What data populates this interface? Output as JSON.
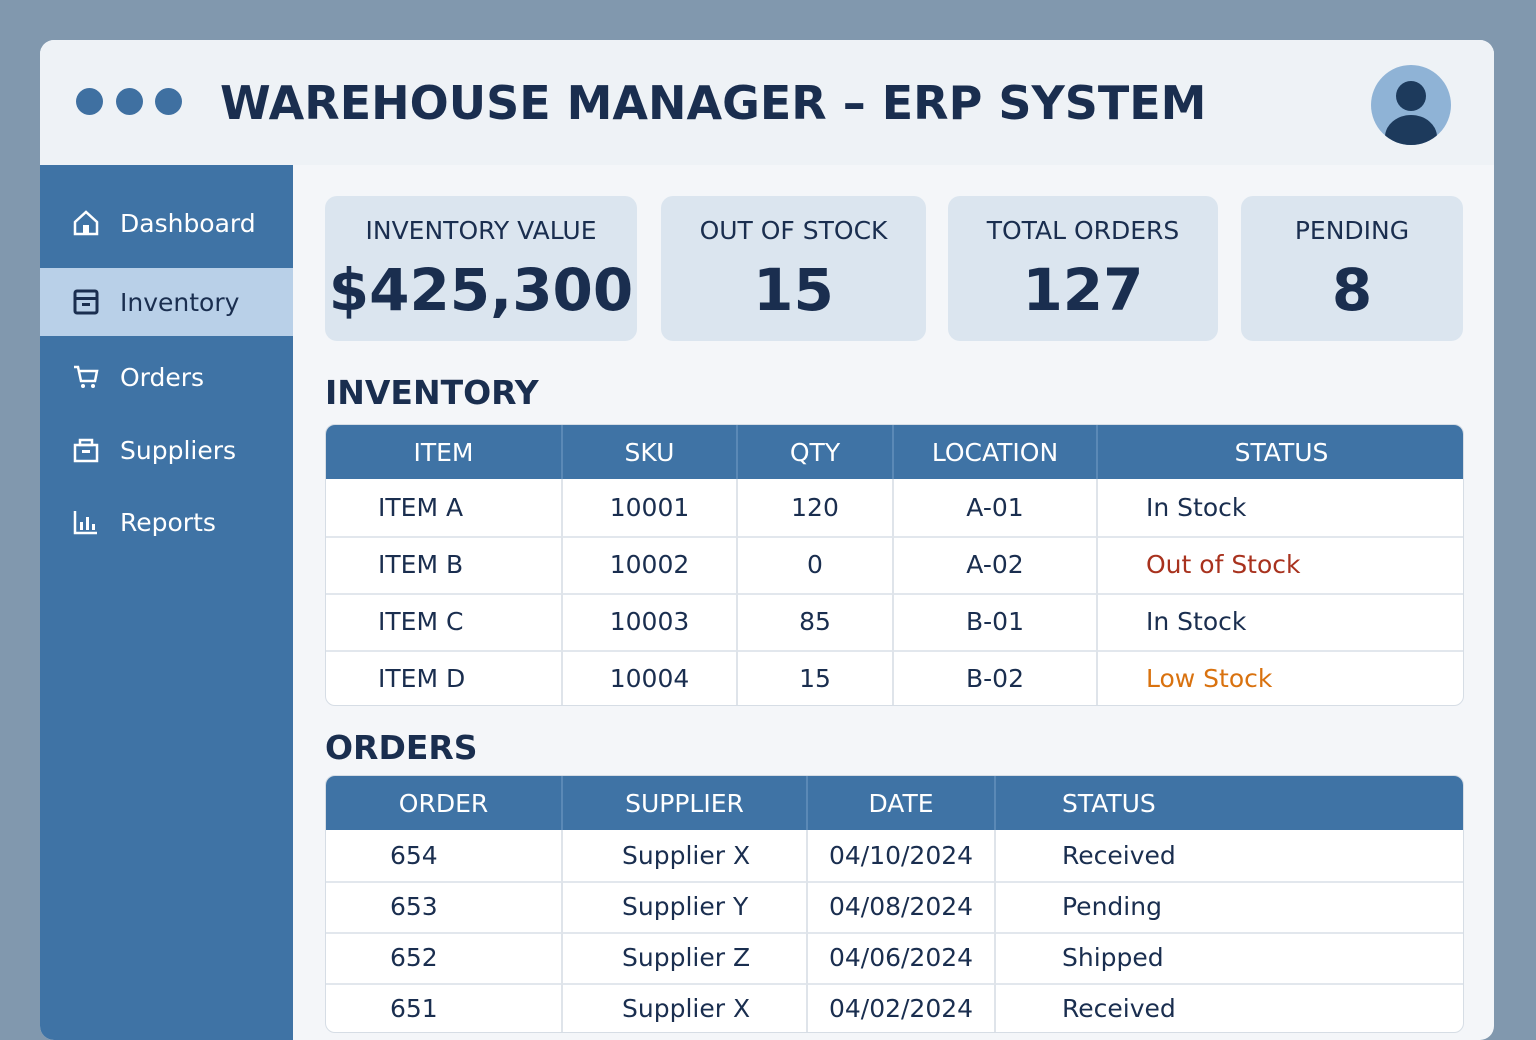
{
  "header": {
    "title": "WAREHOUSE MANAGER – ERP SYSTEM"
  },
  "nav": [
    {
      "label": "Dashboard"
    },
    {
      "label": "Inventory",
      "active": true
    },
    {
      "label": "Orders"
    },
    {
      "label": "Suppliers"
    },
    {
      "label": "Reports"
    }
  ],
  "cards": [
    {
      "label": "INVENTORY VALUE",
      "value": "$425,300"
    },
    {
      "label": "OUT OF STOCK",
      "value": "15"
    },
    {
      "label": "TOTAL ORDERS",
      "value": "127"
    },
    {
      "label": "PENDING",
      "value": "8"
    }
  ],
  "inventory": {
    "title": "INVENTORY",
    "columns": [
      "ITEM",
      "SKU",
      "QTY",
      "LOCATION",
      "STATUS"
    ],
    "rows": [
      [
        "ITEM A",
        "10001",
        "120",
        "A-01",
        "In Stock"
      ],
      [
        "ITEM B",
        "10002",
        "0",
        "A-02",
        "Out of Stock"
      ],
      [
        "ITEM C",
        "10003",
        "85",
        "B-01",
        "In Stock"
      ],
      [
        "ITEM D",
        "10004",
        "15",
        "B-02",
        "Low Stock"
      ]
    ]
  },
  "orders": {
    "title": "ORDERS",
    "columns": [
      "ORDER",
      "SUPPLIER",
      "DATE",
      "STATUS"
    ],
    "rows": [
      [
        "654",
        "Supplier X",
        "04/10/2024",
        "Received"
      ],
      [
        "653",
        "Supplier Y",
        "04/08/2024",
        "Pending"
      ],
      [
        "652",
        "Supplier Z",
        "04/06/2024",
        "Shipped"
      ],
      [
        "651",
        "Supplier X",
        "04/02/2024",
        "Received"
      ]
    ]
  }
}
